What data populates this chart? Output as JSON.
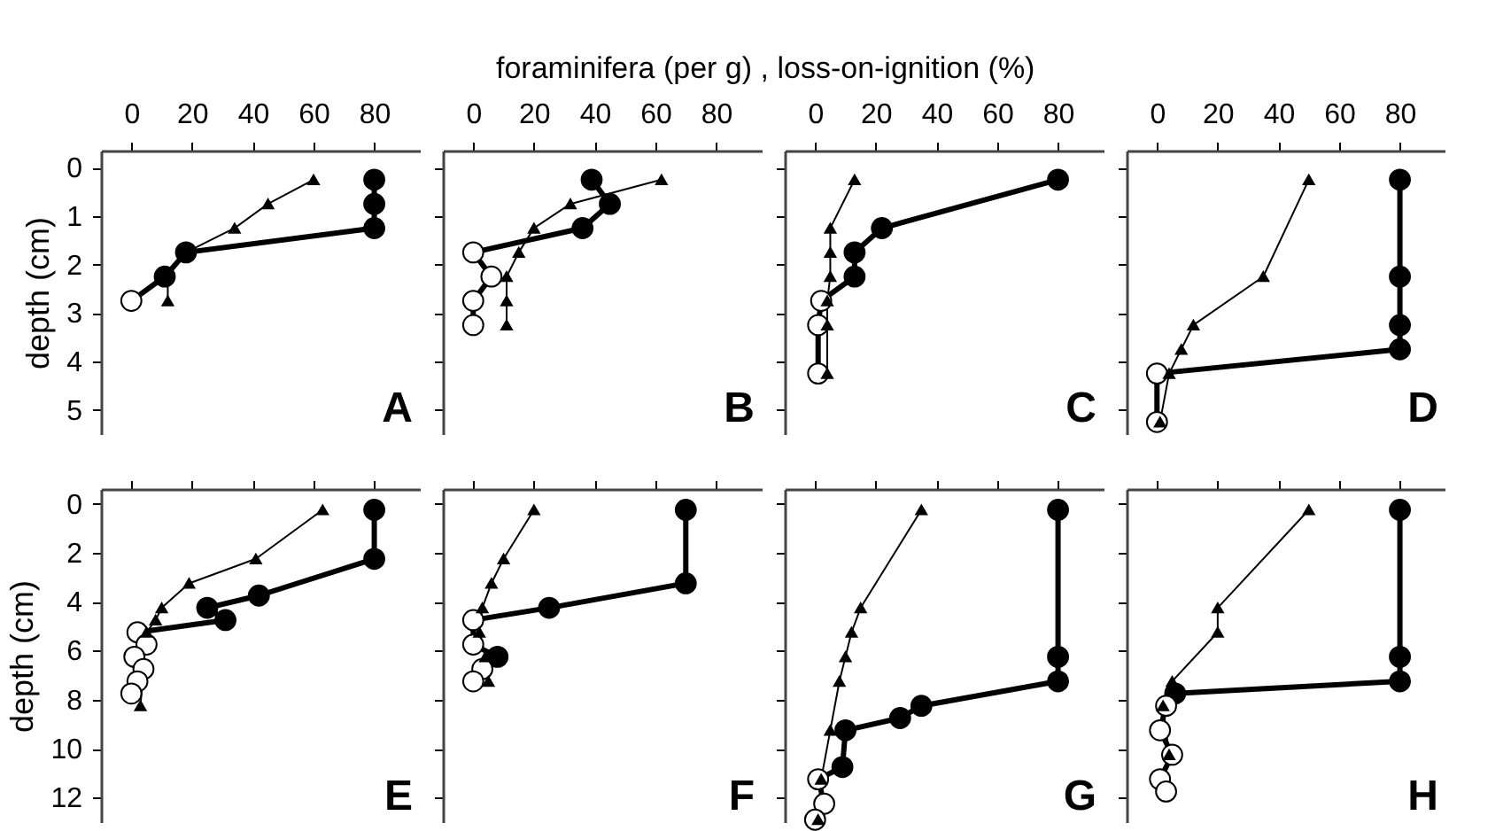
{
  "chart_data": [
    {
      "type": "line",
      "ylabel": "depth (cm)",
      "xlim": [
        -10,
        95
      ],
      "xticks": [
        0,
        20,
        40,
        60,
        80
      ],
      "ylim": [
        5.5,
        -0.35
      ],
      "yticks": [
        0,
        1,
        2,
        3,
        4,
        5
      ],
      "annotations": [
        "A"
      ],
      "series": [
        {
          "color": "#000000",
          "marker": "circle",
          "x": [
            80,
            80,
            80,
            18,
            11,
            0
          ],
          "values": [
            0.25,
            0.75,
            1.25,
            1.75,
            2.25,
            2.75
          ],
          "colors": [
            "#000000",
            "#000000",
            "#000000",
            "#000000",
            "#000000",
            "#ffffff"
          ]
        },
        {
          "color": "#000000",
          "marker": "triangle",
          "x": [
            60,
            45,
            34,
            18,
            12,
            12
          ],
          "values": [
            0.25,
            0.75,
            1.25,
            1.75,
            2.25,
            2.75
          ]
        }
      ]
    },
    {
      "type": "line",
      "title": "foraminifera (per g) , loss-on-ignition (%)",
      "xlim": [
        -10,
        95
      ],
      "xticks": [
        0,
        20,
        40,
        60,
        80
      ],
      "ylim": [
        5.5,
        -0.35
      ],
      "yticks": [
        0,
        1,
        2,
        3,
        4,
        5
      ],
      "tick_labels": "x",
      "annotations": [
        "B"
      ],
      "series": [
        {
          "color": "#000000",
          "marker": "circle",
          "x": [
            39,
            45,
            36,
            0,
            6,
            0,
            0
          ],
          "values": [
            0.25,
            0.75,
            1.25,
            1.75,
            2.25,
            2.75,
            3.25
          ],
          "colors": [
            "#000000",
            "#000000",
            "#000000",
            "#ffffff",
            "#ffffff",
            "#ffffff",
            "#ffffff"
          ]
        },
        {
          "color": "#000000",
          "marker": "triangle",
          "x": [
            62,
            32,
            20,
            15,
            11,
            11,
            11
          ],
          "values": [
            0.25,
            0.75,
            1.25,
            1.75,
            2.25,
            2.75,
            3.25
          ]
        }
      ]
    },
    {
      "type": "line",
      "xlim": [
        -10,
        95
      ],
      "xticks": [
        0,
        20,
        40,
        60,
        80
      ],
      "ylim": [
        5.5,
        -0.35
      ],
      "yticks": [
        0,
        1,
        2,
        3,
        4,
        5
      ],
      "tick_labels": "x",
      "annotations": [
        "C"
      ],
      "series": [
        {
          "color": "#000000",
          "marker": "circle",
          "x": [
            80,
            22,
            13,
            13,
            2,
            1,
            1
          ],
          "values": [
            0.25,
            1.25,
            1.75,
            2.25,
            2.75,
            3.25,
            4.25
          ],
          "colors": [
            "#000000",
            "#000000",
            "#000000",
            "#000000",
            "#ffffff",
            "#ffffff",
            "#ffffff"
          ]
        },
        {
          "color": "#000000",
          "marker": "triangle",
          "x": [
            13,
            5,
            5,
            5,
            4,
            4,
            4
          ],
          "values": [
            0.25,
            1.25,
            1.75,
            2.25,
            2.75,
            3.25,
            4.25
          ]
        }
      ]
    },
    {
      "type": "line",
      "xlim": [
        -10,
        95
      ],
      "xticks": [
        0,
        20,
        40,
        60,
        80
      ],
      "ylim": [
        5.5,
        -0.35
      ],
      "yticks": [
        0,
        1,
        2,
        3,
        4,
        5
      ],
      "tick_labels": "x",
      "annotations": [
        "D"
      ],
      "series": [
        {
          "color": "#000000",
          "marker": "circle",
          "x": [
            80,
            80,
            80,
            80,
            0,
            0
          ],
          "values": [
            0.25,
            2.25,
            3.25,
            3.75,
            4.25,
            5.25
          ],
          "colors": [
            "#000000",
            "#000000",
            "#000000",
            "#000000",
            "#ffffff",
            "#ffffff"
          ]
        },
        {
          "color": "#000000",
          "marker": "triangle",
          "x": [
            50,
            35,
            12,
            8,
            4,
            1
          ],
          "values": [
            0.25,
            2.25,
            3.25,
            3.75,
            4.25,
            5.25
          ]
        }
      ]
    },
    {
      "type": "line",
      "ylabel": "depth (cm)",
      "xlim": [
        -10,
        95
      ],
      "xticks": [
        0,
        20,
        40,
        60,
        80
      ],
      "ylim": [
        13,
        -0.6
      ],
      "yticks": [
        0,
        2,
        4,
        6,
        8,
        10,
        12
      ],
      "tick_labels": "y",
      "annotations": [
        "E"
      ],
      "series": [
        {
          "color": "#000000",
          "marker": "circle",
          "x": [
            80,
            80,
            42,
            25,
            31,
            2,
            5,
            1,
            4,
            2,
            0
          ],
          "values": [
            0.25,
            2.25,
            3.75,
            4.25,
            4.75,
            5.25,
            5.75,
            6.25,
            6.75,
            7.25,
            7.75
          ],
          "colors": [
            "#000000",
            "#000000",
            "#000000",
            "#000000",
            "#000000",
            "#ffffff",
            "#ffffff",
            "#ffffff",
            "#ffffff",
            "#ffffff",
            "#ffffff"
          ]
        },
        {
          "color": "#000000",
          "marker": "triangle",
          "x": [
            63,
            41,
            19,
            10,
            8,
            5,
            3
          ],
          "values": [
            0.25,
            2.25,
            3.25,
            4.25,
            4.75,
            5.25,
            8.25
          ]
        }
      ]
    },
    {
      "type": "line",
      "xlim": [
        -10,
        95
      ],
      "xticks": [
        0,
        20,
        40,
        60,
        80
      ],
      "ylim": [
        13,
        -0.6
      ],
      "yticks": [
        0,
        2,
        4,
        6,
        8,
        10,
        12
      ],
      "tick_labels": false,
      "annotations": [
        "F"
      ],
      "series": [
        {
          "color": "#000000",
          "marker": "circle",
          "x": [
            70,
            70,
            25,
            0,
            0,
            8,
            3,
            0
          ],
          "values": [
            0.25,
            3.25,
            4.25,
            4.75,
            5.75,
            6.25,
            6.75,
            7.25
          ],
          "colors": [
            "#000000",
            "#000000",
            "#000000",
            "#ffffff",
            "#ffffff",
            "#000000",
            "#ffffff",
            "#ffffff"
          ]
        },
        {
          "color": "#000000",
          "marker": "triangle",
          "x": [
            20,
            10,
            6,
            3,
            2,
            4,
            5
          ],
          "values": [
            0.25,
            2.25,
            3.25,
            4.25,
            5.25,
            6.25,
            7.25
          ]
        }
      ]
    },
    {
      "type": "line",
      "xlim": [
        -10,
        95
      ],
      "xticks": [
        0,
        20,
        40,
        60,
        80
      ],
      "ylim": [
        13,
        -0.6
      ],
      "yticks": [
        0,
        2,
        4,
        6,
        8,
        10,
        12
      ],
      "tick_labels": false,
      "annotations": [
        "G"
      ],
      "series": [
        {
          "color": "#000000",
          "marker": "circle",
          "x": [
            80,
            80,
            80,
            35,
            28,
            10,
            9,
            1,
            3,
            0
          ],
          "values": [
            0.25,
            6.25,
            7.25,
            8.25,
            8.75,
            9.25,
            10.75,
            11.25,
            12.25,
            12.9
          ],
          "colors": [
            "#000000",
            "#000000",
            "#000000",
            "#000000",
            "#000000",
            "#000000",
            "#000000",
            "#ffffff",
            "#ffffff",
            "#ffffff"
          ]
        },
        {
          "color": "#000000",
          "marker": "triangle",
          "x": [
            35,
            15,
            12,
            10,
            8,
            5,
            2,
            1
          ],
          "values": [
            0.25,
            4.25,
            5.25,
            6.25,
            7.25,
            9.25,
            11.25,
            12.9
          ]
        }
      ]
    },
    {
      "type": "line",
      "xlim": [
        -10,
        95
      ],
      "xticks": [
        0,
        20,
        40,
        60,
        80
      ],
      "ylim": [
        13,
        -0.6
      ],
      "yticks": [
        0,
        2,
        4,
        6,
        8,
        10,
        12
      ],
      "tick_labels": false,
      "annotations": [
        "H"
      ],
      "series": [
        {
          "color": "#000000",
          "marker": "circle",
          "x": [
            80,
            80,
            80,
            6,
            3,
            1,
            5,
            1,
            3
          ],
          "values": [
            0.25,
            6.25,
            7.25,
            7.75,
            8.25,
            9.25,
            10.25,
            11.25,
            11.75
          ],
          "colors": [
            "#000000",
            "#000000",
            "#000000",
            "#000000",
            "#ffffff",
            "#ffffff",
            "#ffffff",
            "#ffffff",
            "#ffffff"
          ]
        },
        {
          "color": "#000000",
          "marker": "triangle",
          "x": [
            50,
            20,
            20,
            5,
            2,
            4
          ],
          "values": [
            0.25,
            4.25,
            5.25,
            7.25,
            8.25,
            10.25
          ]
        }
      ]
    }
  ]
}
